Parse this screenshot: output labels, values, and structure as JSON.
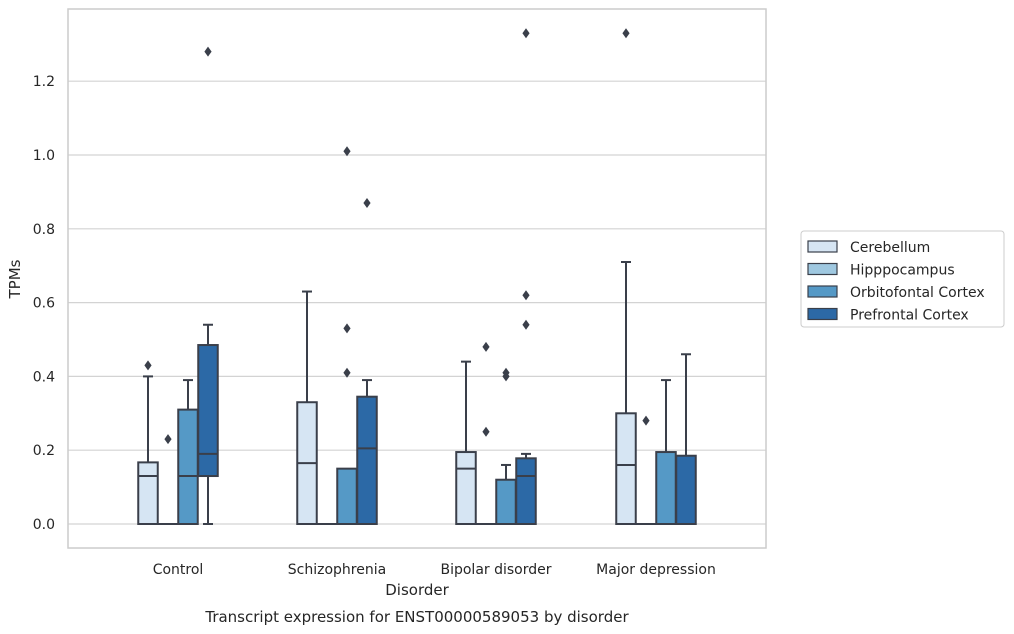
{
  "chart_data": {
    "type": "box",
    "caption": "Transcript expression for ENST00000589053 by disorder",
    "xlabel": "Disorder",
    "ylabel": "TPMs",
    "ylim": [
      -0.065,
      1.4
    ],
    "yticks": [
      "0.0",
      "0.2",
      "0.4",
      "0.6",
      "0.8",
      "1.0",
      "1.2"
    ],
    "grid": "horizontal",
    "legend_position": "right",
    "categories": [
      "Control",
      "Schizophrenia",
      "Bipolar disorder",
      "Major depression"
    ],
    "series": [
      {
        "name": "Cerebellum",
        "color": "#d6e5f3",
        "boxes": [
          {
            "q1": 0.0,
            "median": 0.13,
            "q3": 0.167,
            "whisker_low": 0.0,
            "whisker_high": 0.4,
            "outliers": [
              0.43
            ]
          },
          {
            "q1": 0.0,
            "median": 0.165,
            "q3": 0.33,
            "whisker_low": 0.0,
            "whisker_high": 0.63,
            "outliers": []
          },
          {
            "q1": 0.0,
            "median": 0.15,
            "q3": 0.195,
            "whisker_low": 0.0,
            "whisker_high": 0.44,
            "outliers": []
          },
          {
            "q1": 0.0,
            "median": 0.16,
            "q3": 0.3,
            "whisker_low": 0.0,
            "whisker_high": 0.71,
            "outliers": [
              1.33
            ]
          }
        ]
      },
      {
        "name": "Hipppocampus",
        "color": "#9fc8e0",
        "boxes": [
          {
            "q1": 0.0,
            "median": 0.0,
            "q3": 0.0,
            "whisker_low": 0.0,
            "whisker_high": 0.0,
            "outliers": [
              0.23
            ]
          },
          {
            "q1": 0.0,
            "median": 0.0,
            "q3": 0.0,
            "whisker_low": 0.0,
            "whisker_high": 0.0,
            "outliers": []
          },
          {
            "q1": 0.0,
            "median": 0.0,
            "q3": 0.0,
            "whisker_low": 0.0,
            "whisker_high": 0.0,
            "outliers": [
              0.25,
              0.48
            ]
          },
          {
            "q1": 0.0,
            "median": 0.0,
            "q3": 0.0,
            "whisker_low": 0.0,
            "whisker_high": 0.0,
            "outliers": [
              0.28
            ]
          }
        ]
      },
      {
        "name": "Orbitofontal Cortex",
        "color": "#5599c6",
        "boxes": [
          {
            "q1": 0.0,
            "median": 0.13,
            "q3": 0.31,
            "whisker_low": 0.0,
            "whisker_high": 0.39,
            "outliers": []
          },
          {
            "q1": 0.0,
            "median": 0.0,
            "q3": 0.15,
            "whisker_low": 0.0,
            "whisker_high": 0.15,
            "outliers": [
              0.41,
              0.53,
              1.01
            ]
          },
          {
            "q1": 0.0,
            "median": 0.0,
            "q3": 0.12,
            "whisker_low": 0.0,
            "whisker_high": 0.16,
            "outliers": [
              0.4,
              0.41
            ]
          },
          {
            "q1": 0.0,
            "median": 0.0,
            "q3": 0.195,
            "whisker_low": 0.0,
            "whisker_high": 0.39,
            "outliers": []
          }
        ]
      },
      {
        "name": "Prefrontal Cortex",
        "color": "#2c69a6",
        "boxes": [
          {
            "q1": 0.13,
            "median": 0.19,
            "q3": 0.485,
            "whisker_low": 0.0,
            "whisker_high": 0.54,
            "outliers": [
              1.28
            ]
          },
          {
            "q1": 0.0,
            "median": 0.205,
            "q3": 0.345,
            "whisker_low": 0.0,
            "whisker_high": 0.39,
            "outliers": [
              0.87
            ]
          },
          {
            "q1": 0.0,
            "median": 0.13,
            "q3": 0.178,
            "whisker_low": 0.0,
            "whisker_high": 0.19,
            "outliers": [
              0.54,
              0.62,
              1.33
            ]
          },
          {
            "q1": 0.0,
            "median": 0.0,
            "q3": 0.185,
            "whisker_low": 0.0,
            "whisker_high": 0.46,
            "outliers": []
          }
        ]
      }
    ]
  }
}
